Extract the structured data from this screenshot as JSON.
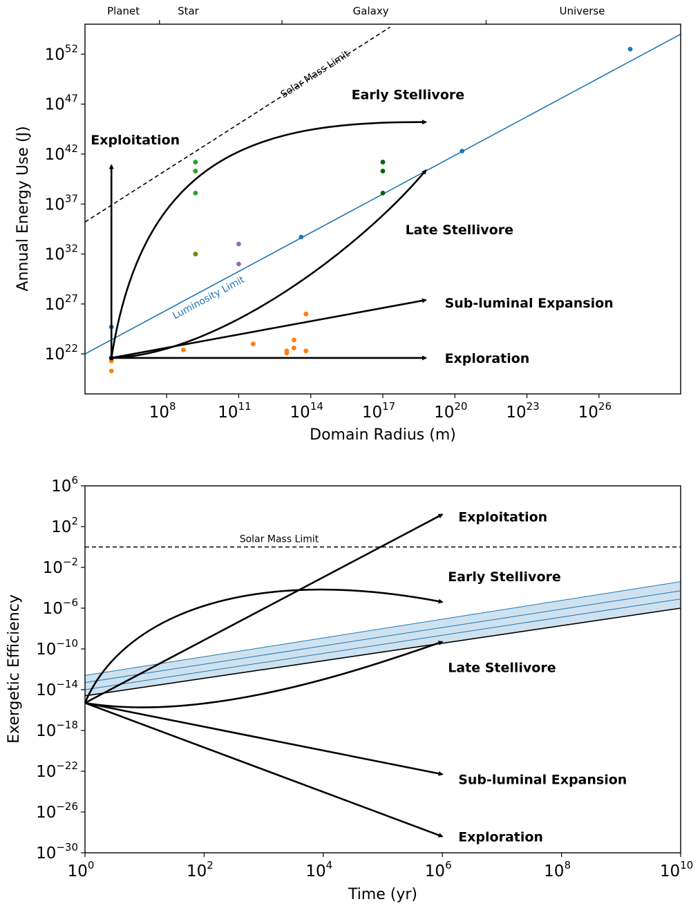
{
  "chart_data": [
    {
      "type": "scatter",
      "xlabel": "Domain Radius (m)",
      "ylabel": "Annual Energy Use (J)",
      "x_scale": "log",
      "y_scale": "log",
      "xlim_log10": [
        4.6,
        29.4
      ],
      "ylim_log10": [
        18.0,
        55.0
      ],
      "x_ticks": [
        {
          "base": "10",
          "exp": "8",
          "value_log10": 8
        },
        {
          "base": "10",
          "exp": "11",
          "value_log10": 11
        },
        {
          "base": "10",
          "exp": "14",
          "value_log10": 14
        },
        {
          "base": "10",
          "exp": "17",
          "value_log10": 17
        },
        {
          "base": "10",
          "exp": "20",
          "value_log10": 20
        },
        {
          "base": "10",
          "exp": "23",
          "value_log10": 23
        },
        {
          "base": "10",
          "exp": "26",
          "value_log10": 26
        }
      ],
      "y_ticks": [
        {
          "base": "10",
          "exp": "22",
          "value_log10": 22
        },
        {
          "base": "10",
          "exp": "27",
          "value_log10": 27
        },
        {
          "base": "10",
          "exp": "32",
          "value_log10": 32
        },
        {
          "base": "10",
          "exp": "37",
          "value_log10": 37
        },
        {
          "base": "10",
          "exp": "42",
          "value_log10": 42
        },
        {
          "base": "10",
          "exp": "47",
          "value_log10": 47
        },
        {
          "base": "10",
          "exp": "52",
          "value_log10": 52
        }
      ],
      "secondary_axis": {
        "labels": [
          "Planet",
          "Star",
          "Galaxy",
          "Universe"
        ],
        "label_positions_log10": [
          6.2,
          8.9,
          16.5,
          25.3
        ],
        "tick_positions_log10": [
          7.7,
          12.8,
          21.3
        ]
      },
      "reference_lines": [
        {
          "label": "Solar Mass Limit",
          "style": "dashed",
          "color": "#000000",
          "from_log10": [
            4.6,
            35.2
          ],
          "to_log10": [
            17.3,
            54.7
          ]
        },
        {
          "label": "Luminosity Limit",
          "style": "solid",
          "color": "#1f77b4",
          "from_log10": [
            4.6,
            22.0
          ],
          "to_log10": [
            29.4,
            54.0
          ]
        }
      ],
      "luminosity_markers_log10": [
        [
          5.7,
          24.7
        ],
        [
          13.6,
          33.7
        ],
        [
          20.3,
          42.3
        ],
        [
          27.3,
          52.5
        ]
      ],
      "scatter_series": [
        {
          "color": "#ff7f0e",
          "points_log10": [
            [
              5.7,
              21.3
            ],
            [
              5.7,
              20.3
            ],
            [
              8.7,
              22.4
            ],
            [
              11.6,
              23.0
            ],
            [
              13.0,
              22.3
            ],
            [
              13.0,
              22.1
            ],
            [
              13.3,
              22.6
            ],
            [
              13.3,
              23.4
            ],
            [
              13.8,
              22.3
            ],
            [
              13.8,
              26.0
            ]
          ]
        },
        {
          "color": "#2ca02c",
          "points_log10": [
            [
              9.2,
              41.2
            ],
            [
              9.2,
              40.3
            ],
            [
              9.2,
              38.1
            ]
          ]
        },
        {
          "color": "#006400",
          "points_log10": [
            [
              17.0,
              41.2
            ],
            [
              17.0,
              40.3
            ],
            [
              17.0,
              38.1
            ]
          ]
        },
        {
          "color": "#9467bd",
          "points_log10": [
            [
              11.0,
              33.0
            ],
            [
              11.0,
              31.0
            ]
          ]
        },
        {
          "color": "#808000",
          "points_log10": [
            [
              9.2,
              32.0
            ]
          ]
        }
      ],
      "arrows": [
        {
          "label": "Exploitation",
          "from_log10": [
            5.7,
            21.6
          ],
          "to_log10": [
            5.7,
            40.9
          ],
          "curve": "straight"
        },
        {
          "label": "Early Stellivore",
          "from_log10": [
            5.7,
            21.6
          ],
          "to_log10": [
            18.8,
            45.2
          ],
          "curve": "arc-up"
        },
        {
          "label": "Late Stellivore",
          "from_log10": [
            5.7,
            21.6
          ],
          "to_log10": [
            18.8,
            40.4
          ],
          "curve": "arc-down"
        },
        {
          "label": "Sub-luminal Expansion",
          "from_log10": [
            5.7,
            21.6
          ],
          "to_log10": [
            18.8,
            27.4
          ],
          "curve": "straight"
        },
        {
          "label": "Exploration",
          "from_log10": [
            5.7,
            21.6
          ],
          "to_log10": [
            18.8,
            21.6
          ],
          "curve": "straight"
        }
      ]
    },
    {
      "type": "line",
      "xlabel": "Time (yr)",
      "ylabel": "Exergetic Efficiency",
      "x_scale": "log",
      "y_scale": "log",
      "xlim_log10": [
        0,
        10
      ],
      "ylim_log10": [
        -30,
        6
      ],
      "x_ticks": [
        {
          "base": "10",
          "exp": "0",
          "value_log10": 0
        },
        {
          "base": "10",
          "exp": "2",
          "value_log10": 2
        },
        {
          "base": "10",
          "exp": "4",
          "value_log10": 4
        },
        {
          "base": "10",
          "exp": "6",
          "value_log10": 6
        },
        {
          "base": "10",
          "exp": "8",
          "value_log10": 8
        },
        {
          "base": "10",
          "exp": "10",
          "value_log10": 10
        }
      ],
      "y_ticks": [
        {
          "base": "10",
          "exp": "−30",
          "value_log10": -30
        },
        {
          "base": "10",
          "exp": "−26",
          "value_log10": -26
        },
        {
          "base": "10",
          "exp": "−22",
          "value_log10": -22
        },
        {
          "base": "10",
          "exp": "−18",
          "value_log10": -18
        },
        {
          "base": "10",
          "exp": "−14",
          "value_log10": -14
        },
        {
          "base": "10",
          "exp": "−10",
          "value_log10": -10
        },
        {
          "base": "10",
          "exp": "−6",
          "value_log10": -6
        },
        {
          "base": "10",
          "exp": "−2",
          "value_log10": -2
        },
        {
          "base": "10",
          "exp": "2",
          "value_log10": 2
        },
        {
          "base": "10",
          "exp": "6",
          "value_log10": 6
        }
      ],
      "reference_lines": [
        {
          "label": "Solar Mass Limit",
          "style": "dashed",
          "color": "#000000",
          "from_log10": [
            0,
            0
          ],
          "to_log10": [
            10,
            0
          ]
        }
      ],
      "band": {
        "color": "#1f77b4",
        "upper_log10": [
          [
            0,
            -12.6
          ],
          [
            10,
            -3.4
          ]
        ],
        "lower_log10": [
          [
            0,
            -14.6
          ],
          [
            10,
            -6.0
          ]
        ],
        "inner_lines_log10": [
          [
            [
              0,
              -13.3
            ],
            [
              10,
              -4.3
            ]
          ],
          [
            [
              0,
              -14.0
            ],
            [
              10,
              -5.1
            ]
          ]
        ]
      },
      "baseline_log10": [
        [
          0,
          -14.6
        ],
        [
          10,
          -6.0
        ]
      ],
      "arrows": [
        {
          "label": "Exploitation",
          "from_log10": [
            0,
            -15.3
          ],
          "to_log10": [
            6.0,
            3.2
          ],
          "curve": "straight"
        },
        {
          "label": "Early Stellivore",
          "from_log10": [
            0,
            -15.3
          ],
          "to_log10": [
            6.0,
            -5.4
          ],
          "curve": "arc-up"
        },
        {
          "label": "Late Stellivore",
          "from_log10": [
            0,
            -15.3
          ],
          "to_log10": [
            6.0,
            -9.3
          ],
          "curve": "arc-down"
        },
        {
          "label": "Sub-luminal Expansion",
          "from_log10": [
            0,
            -15.3
          ],
          "to_log10": [
            6.0,
            -22.3
          ],
          "curve": "straight"
        },
        {
          "label": "Exploration",
          "from_log10": [
            0,
            -15.3
          ],
          "to_log10": [
            6.0,
            -28.4
          ],
          "curve": "straight"
        }
      ]
    }
  ]
}
